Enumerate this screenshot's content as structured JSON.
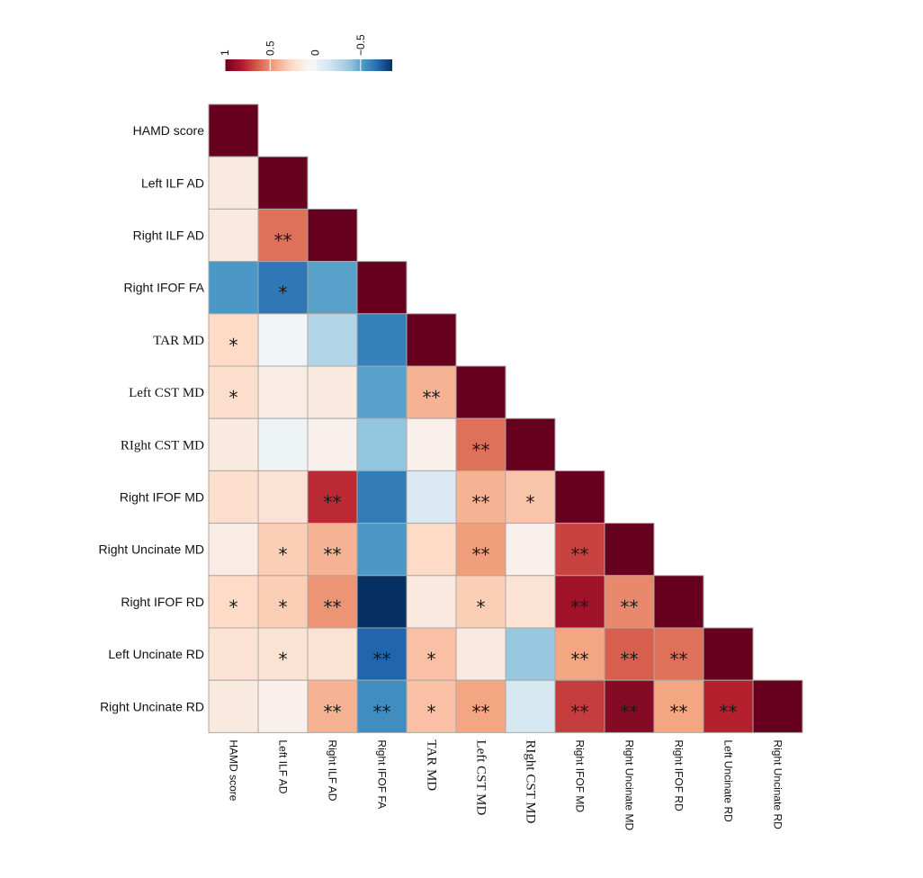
{
  "chart_data": {
    "type": "heatmap",
    "title": "",
    "matrix_shape": "lower-triangle",
    "variables": [
      "HAMD score",
      "Left ILF AD",
      "Right ILF AD",
      "Right IFOF FA",
      "TAR MD",
      "Left CST MD",
      "RIght CST MD",
      "Right IFOF MD",
      "Right Uncinate MD",
      "Right IFOF RD",
      "Left Uncinate RD",
      "Right Uncinate RD"
    ],
    "serif_labels": [
      "TAR MD",
      "Left CST MD",
      "RIght CST MD"
    ],
    "color_range": [
      -1,
      1
    ],
    "colorbar": {
      "orientation": "horizontal",
      "reversed": true,
      "tick_values": [
        1,
        0.5,
        0,
        -0.5
      ],
      "tick_labels": [
        "1",
        "0.5",
        "0",
        "−0.5"
      ],
      "display_range": [
        1,
        -0.85
      ]
    },
    "palette": [
      "#67001f",
      "#b2182b",
      "#d6604d",
      "#f4a582",
      "#fddbc7",
      "#f7f7f7",
      "#d1e5f0",
      "#92c5de",
      "#4393c3",
      "#2166ac",
      "#053061"
    ],
    "values": [
      [
        1.0
      ],
      [
        0.1,
        1.0
      ],
      [
        0.1,
        0.55,
        1.0
      ],
      [
        -0.58,
        -0.72,
        -0.55,
        1.0
      ],
      [
        0.2,
        -0.03,
        -0.3,
        -0.68,
        1.0
      ],
      [
        0.18,
        0.08,
        0.1,
        -0.55,
        0.35,
        1.0
      ],
      [
        0.1,
        -0.05,
        0.05,
        -0.4,
        0.05,
        0.55,
        1.0
      ],
      [
        0.18,
        0.15,
        0.75,
        -0.7,
        -0.15,
        0.35,
        0.28,
        1.0
      ],
      [
        0.08,
        0.25,
        0.35,
        -0.58,
        0.2,
        0.42,
        0.05,
        0.68,
        1.0
      ],
      [
        0.2,
        0.25,
        0.45,
        -1.0,
        0.1,
        0.25,
        0.15,
        0.85,
        0.48,
        1.0
      ],
      [
        0.15,
        0.15,
        0.15,
        -0.8,
        0.3,
        0.1,
        -0.38,
        0.4,
        0.6,
        0.55,
        1.0
      ],
      [
        0.1,
        0.05,
        0.35,
        -0.62,
        0.3,
        0.4,
        -0.18,
        0.7,
        0.92,
        0.4,
        0.78,
        1.0
      ]
    ],
    "significance": [
      [
        ""
      ],
      [
        "",
        ""
      ],
      [
        "",
        "**",
        ""
      ],
      [
        "",
        "*",
        "",
        ""
      ],
      [
        "*",
        "",
        "",
        "",
        ""
      ],
      [
        "*",
        "",
        "",
        "",
        "**",
        ""
      ],
      [
        "",
        "",
        "",
        "",
        "",
        "**",
        ""
      ],
      [
        "",
        "",
        "**",
        "",
        "",
        "**",
        "*",
        ""
      ],
      [
        "",
        "*",
        "**",
        "",
        "",
        "**",
        "",
        "**",
        ""
      ],
      [
        "*",
        "*",
        "**",
        "",
        "",
        "*",
        "",
        "**",
        "**",
        ""
      ],
      [
        "",
        "*",
        "",
        "**",
        "*",
        "",
        "",
        "**",
        "**",
        "**",
        ""
      ],
      [
        "",
        "",
        "**",
        "**",
        "*",
        "**",
        "",
        "**",
        "**",
        "**",
        "**",
        ""
      ]
    ]
  }
}
